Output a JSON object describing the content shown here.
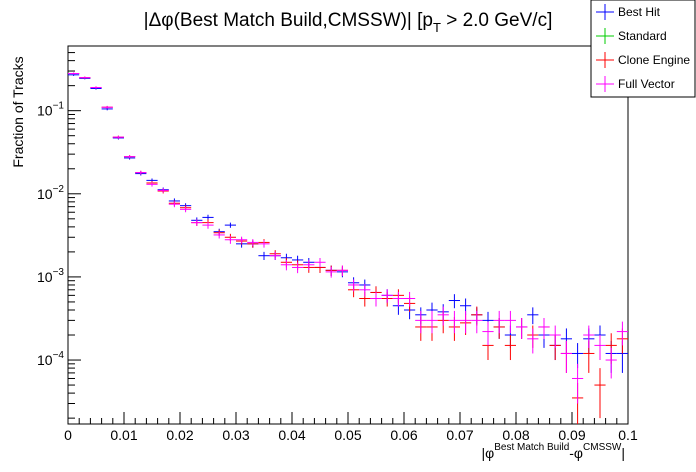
{
  "chart_data": {
    "type": "scatter",
    "title": {
      "prefix": "|Δφ(Best Match Build,CMSSW)| [p",
      "sub": "T",
      "suffix": " > 2.0 GeV/c]"
    },
    "ylabel": "Fraction of Tracks",
    "xlabel": {
      "open": "|φ",
      "sup1": "Best Match Build",
      "mid": "-φ",
      "sup2": "CMSSW",
      "close": "|"
    },
    "x_tick_labels": [
      "0",
      "0.01",
      "0.02",
      "0.03",
      "0.04",
      "0.05",
      "0.06",
      "0.07",
      "0.08",
      "0.09",
      "0.1"
    ],
    "y_tick_labels": [
      {
        "base": "10",
        "exp": "−4"
      },
      {
        "base": "10",
        "exp": "−3"
      },
      {
        "base": "10",
        "exp": "−2"
      },
      {
        "base": "10",
        "exp": "−1"
      }
    ],
    "xlim": [
      0,
      0.1
    ],
    "ylim": [
      1.7e-05,
      0.6
    ],
    "yscale": "log",
    "grid": false,
    "legend_position": "top-right",
    "bin_width": 0.002,
    "series": [
      {
        "name": "Best Hit",
        "color": "#0000ff",
        "points": [
          {
            "x": 0.001,
            "y": 0.27,
            "err": 0.008
          },
          {
            "x": 0.003,
            "y": 0.245,
            "err": 0.007
          },
          {
            "x": 0.005,
            "y": 0.185,
            "err": 0.006
          },
          {
            "x": 0.007,
            "y": 0.105,
            "err": 0.004
          },
          {
            "x": 0.009,
            "y": 0.047,
            "err": 0.002
          },
          {
            "x": 0.011,
            "y": 0.027,
            "err": 0.0012
          },
          {
            "x": 0.013,
            "y": 0.0175,
            "err": 0.0009
          },
          {
            "x": 0.015,
            "y": 0.0145,
            "err": 0.0008
          },
          {
            "x": 0.017,
            "y": 0.0112,
            "err": 0.0007
          },
          {
            "x": 0.019,
            "y": 0.0082,
            "err": 0.0006
          },
          {
            "x": 0.021,
            "y": 0.0072,
            "err": 0.0005
          },
          {
            "x": 0.023,
            "y": 0.0048,
            "err": 0.0004
          },
          {
            "x": 0.025,
            "y": 0.0052,
            "err": 0.0004
          },
          {
            "x": 0.027,
            "y": 0.0035,
            "err": 0.0003
          },
          {
            "x": 0.029,
            "y": 0.0042,
            "err": 0.0003
          },
          {
            "x": 0.031,
            "y": 0.0025,
            "err": 0.00025
          },
          {
            "x": 0.033,
            "y": 0.0025,
            "err": 0.00025
          },
          {
            "x": 0.035,
            "y": 0.0018,
            "err": 0.0002
          },
          {
            "x": 0.037,
            "y": 0.0018,
            "err": 0.0002
          },
          {
            "x": 0.039,
            "y": 0.0017,
            "err": 0.0002
          },
          {
            "x": 0.041,
            "y": 0.0016,
            "err": 0.0002
          },
          {
            "x": 0.043,
            "y": 0.0015,
            "err": 0.00019
          },
          {
            "x": 0.045,
            "y": 0.0013,
            "err": 0.00018
          },
          {
            "x": 0.047,
            "y": 0.0012,
            "err": 0.00017
          },
          {
            "x": 0.049,
            "y": 0.00115,
            "err": 0.00016
          },
          {
            "x": 0.051,
            "y": 0.00085,
            "err": 0.00014
          },
          {
            "x": 0.053,
            "y": 0.0008,
            "err": 0.00013
          },
          {
            "x": 0.055,
            "y": 0.00065,
            "err": 0.00012
          },
          {
            "x": 0.057,
            "y": 0.0006,
            "err": 0.00011
          },
          {
            "x": 0.059,
            "y": 0.00045,
            "err": 0.0001
          },
          {
            "x": 0.061,
            "y": 0.0004,
            "err": 9e-05
          },
          {
            "x": 0.063,
            "y": 0.00035,
            "err": 8e-05
          },
          {
            "x": 0.065,
            "y": 0.0004,
            "err": 9e-05
          },
          {
            "x": 0.067,
            "y": 0.00038,
            "err": 9e-05
          },
          {
            "x": 0.069,
            "y": 0.00052,
            "err": 0.0001
          },
          {
            "x": 0.071,
            "y": 0.00045,
            "err": 0.0001
          },
          {
            "x": 0.073,
            "y": 0.00035,
            "err": 8e-05
          },
          {
            "x": 0.075,
            "y": 0.0003,
            "err": 8e-05
          },
          {
            "x": 0.077,
            "y": 0.00025,
            "err": 7e-05
          },
          {
            "x": 0.079,
            "y": 0.0002,
            "err": 6e-05
          },
          {
            "x": 0.081,
            "y": 0.00025,
            "err": 7e-05
          },
          {
            "x": 0.083,
            "y": 0.00035,
            "err": 8e-05
          },
          {
            "x": 0.085,
            "y": 0.0002,
            "err": 6e-05
          },
          {
            "x": 0.087,
            "y": 0.00015,
            "err": 5e-05
          },
          {
            "x": 0.089,
            "y": 0.00018,
            "err": 6e-05
          },
          {
            "x": 0.091,
            "y": 0.00012,
            "err": 4e-05
          },
          {
            "x": 0.093,
            "y": 0.00018,
            "err": 6e-05
          },
          {
            "x": 0.095,
            "y": 0.0002,
            "err": 6e-05
          },
          {
            "x": 0.097,
            "y": 0.00012,
            "err": 5e-05
          },
          {
            "x": 0.099,
            "y": 0.00012,
            "err": 5e-05
          }
        ]
      },
      {
        "name": "Standard",
        "color": "#00cc00",
        "points": []
      },
      {
        "name": "Clone Engine",
        "color": "#ff0000",
        "points": [
          {
            "x": 0.001,
            "y": 0.28,
            "err": 0.008
          },
          {
            "x": 0.003,
            "y": 0.25,
            "err": 0.007
          },
          {
            "x": 0.005,
            "y": 0.19,
            "err": 0.006
          },
          {
            "x": 0.007,
            "y": 0.11,
            "err": 0.004
          },
          {
            "x": 0.009,
            "y": 0.048,
            "err": 0.002
          },
          {
            "x": 0.011,
            "y": 0.028,
            "err": 0.0012
          },
          {
            "x": 0.013,
            "y": 0.018,
            "err": 0.0009
          },
          {
            "x": 0.015,
            "y": 0.0135,
            "err": 0.0008
          },
          {
            "x": 0.017,
            "y": 0.0108,
            "err": 0.0007
          },
          {
            "x": 0.019,
            "y": 0.0077,
            "err": 0.0006
          },
          {
            "x": 0.021,
            "y": 0.0068,
            "err": 0.0005
          },
          {
            "x": 0.023,
            "y": 0.0045,
            "err": 0.0004
          },
          {
            "x": 0.025,
            "y": 0.0045,
            "err": 0.0004
          },
          {
            "x": 0.027,
            "y": 0.0034,
            "err": 0.0003
          },
          {
            "x": 0.029,
            "y": 0.003,
            "err": 0.0003
          },
          {
            "x": 0.031,
            "y": 0.0027,
            "err": 0.00025
          },
          {
            "x": 0.033,
            "y": 0.0025,
            "err": 0.00025
          },
          {
            "x": 0.035,
            "y": 0.0026,
            "err": 0.00025
          },
          {
            "x": 0.037,
            "y": 0.0019,
            "err": 0.0002
          },
          {
            "x": 0.039,
            "y": 0.0015,
            "err": 0.0002
          },
          {
            "x": 0.041,
            "y": 0.0014,
            "err": 0.00019
          },
          {
            "x": 0.043,
            "y": 0.0013,
            "err": 0.00018
          },
          {
            "x": 0.045,
            "y": 0.0013,
            "err": 0.00018
          },
          {
            "x": 0.047,
            "y": 0.0012,
            "err": 0.00017
          },
          {
            "x": 0.049,
            "y": 0.0012,
            "err": 0.00017
          },
          {
            "x": 0.051,
            "y": 0.0007,
            "err": 0.00013
          },
          {
            "x": 0.053,
            "y": 0.00055,
            "err": 0.00011
          },
          {
            "x": 0.055,
            "y": 0.00065,
            "err": 0.00012
          },
          {
            "x": 0.057,
            "y": 0.00055,
            "err": 0.00011
          },
          {
            "x": 0.059,
            "y": 0.0006,
            "err": 0.00011
          },
          {
            "x": 0.061,
            "y": 0.00048,
            "err": 0.0001
          },
          {
            "x": 0.063,
            "y": 0.00025,
            "err": 8e-05
          },
          {
            "x": 0.065,
            "y": 0.00025,
            "err": 8e-05
          },
          {
            "x": 0.067,
            "y": 0.0003,
            "err": 9e-05
          },
          {
            "x": 0.069,
            "y": 0.00025,
            "err": 8e-05
          },
          {
            "x": 0.071,
            "y": 0.00028,
            "err": 8e-05
          },
          {
            "x": 0.073,
            "y": 0.00035,
            "err": 9e-05
          },
          {
            "x": 0.075,
            "y": 0.00015,
            "err": 5e-05
          },
          {
            "x": 0.077,
            "y": 0.00025,
            "err": 7e-05
          },
          {
            "x": 0.079,
            "y": 0.00015,
            "err": 5e-05
          },
          {
            "x": 0.081,
            "y": 0.00025,
            "err": 7e-05
          },
          {
            "x": 0.083,
            "y": 0.0002,
            "err": 6e-05
          },
          {
            "x": 0.085,
            "y": 0.00025,
            "err": 7e-05
          },
          {
            "x": 0.087,
            "y": 0.00015,
            "err": 5e-05
          },
          {
            "x": 0.089,
            "y": 0.00012,
            "err": 5e-05
          },
          {
            "x": 0.091,
            "y": 3.5e-05,
            "err": 1.8e-05
          },
          {
            "x": 0.093,
            "y": 0.00012,
            "err": 5e-05
          },
          {
            "x": 0.095,
            "y": 5e-05,
            "err": 3e-05
          },
          {
            "x": 0.097,
            "y": 0.00015,
            "err": 6e-05
          },
          {
            "x": 0.099,
            "y": 0.00018,
            "err": 6e-05
          }
        ]
      },
      {
        "name": "Full Vector",
        "color": "#ff00ff",
        "points": [
          {
            "x": 0.001,
            "y": 0.28,
            "err": 0.008
          },
          {
            "x": 0.003,
            "y": 0.25,
            "err": 0.007
          },
          {
            "x": 0.005,
            "y": 0.19,
            "err": 0.006
          },
          {
            "x": 0.007,
            "y": 0.11,
            "err": 0.004
          },
          {
            "x": 0.009,
            "y": 0.048,
            "err": 0.002
          },
          {
            "x": 0.011,
            "y": 0.028,
            "err": 0.0012
          },
          {
            "x": 0.013,
            "y": 0.018,
            "err": 0.0009
          },
          {
            "x": 0.015,
            "y": 0.013,
            "err": 0.0008
          },
          {
            "x": 0.017,
            "y": 0.011,
            "err": 0.0007
          },
          {
            "x": 0.019,
            "y": 0.0075,
            "err": 0.0006
          },
          {
            "x": 0.021,
            "y": 0.0065,
            "err": 0.0005
          },
          {
            "x": 0.023,
            "y": 0.0045,
            "err": 0.0004
          },
          {
            "x": 0.025,
            "y": 0.0042,
            "err": 0.0004
          },
          {
            "x": 0.027,
            "y": 0.0032,
            "err": 0.0003
          },
          {
            "x": 0.029,
            "y": 0.0028,
            "err": 0.0003
          },
          {
            "x": 0.031,
            "y": 0.0028,
            "err": 0.00025
          },
          {
            "x": 0.033,
            "y": 0.0026,
            "err": 0.00025
          },
          {
            "x": 0.035,
            "y": 0.0025,
            "err": 0.00025
          },
          {
            "x": 0.037,
            "y": 0.0018,
            "err": 0.0002
          },
          {
            "x": 0.039,
            "y": 0.0014,
            "err": 0.0002
          },
          {
            "x": 0.041,
            "y": 0.0013,
            "err": 0.00019
          },
          {
            "x": 0.043,
            "y": 0.0014,
            "err": 0.00019
          },
          {
            "x": 0.045,
            "y": 0.0015,
            "err": 0.00019
          },
          {
            "x": 0.047,
            "y": 0.00115,
            "err": 0.00017
          },
          {
            "x": 0.049,
            "y": 0.0012,
            "err": 0.00017
          },
          {
            "x": 0.051,
            "y": 0.0008,
            "err": 0.00013
          },
          {
            "x": 0.053,
            "y": 0.0007,
            "err": 0.00012
          },
          {
            "x": 0.055,
            "y": 0.00055,
            "err": 0.00011
          },
          {
            "x": 0.057,
            "y": 0.0006,
            "err": 0.00011
          },
          {
            "x": 0.059,
            "y": 0.00055,
            "err": 0.00011
          },
          {
            "x": 0.061,
            "y": 0.00055,
            "err": 0.00011
          },
          {
            "x": 0.063,
            "y": 0.0003,
            "err": 9e-05
          },
          {
            "x": 0.065,
            "y": 0.0003,
            "err": 9e-05
          },
          {
            "x": 0.067,
            "y": 0.00035,
            "err": 9e-05
          },
          {
            "x": 0.069,
            "y": 0.0003,
            "err": 9e-05
          },
          {
            "x": 0.071,
            "y": 0.0003,
            "err": 9e-05
          },
          {
            "x": 0.073,
            "y": 0.0003,
            "err": 9e-05
          },
          {
            "x": 0.075,
            "y": 0.00022,
            "err": 7e-05
          },
          {
            "x": 0.077,
            "y": 0.0003,
            "err": 9e-05
          },
          {
            "x": 0.079,
            "y": 0.0003,
            "err": 9e-05
          },
          {
            "x": 0.081,
            "y": 0.00025,
            "err": 7e-05
          },
          {
            "x": 0.083,
            "y": 0.00018,
            "err": 6e-05
          },
          {
            "x": 0.085,
            "y": 0.00025,
            "err": 7e-05
          },
          {
            "x": 0.087,
            "y": 0.0002,
            "err": 6e-05
          },
          {
            "x": 0.089,
            "y": 0.00012,
            "err": 5e-05
          },
          {
            "x": 0.091,
            "y": 6e-05,
            "err": 3e-05
          },
          {
            "x": 0.093,
            "y": 0.0002,
            "err": 6e-05
          },
          {
            "x": 0.095,
            "y": 0.00015,
            "err": 5e-05
          },
          {
            "x": 0.097,
            "y": 0.0001,
            "err": 4e-05
          },
          {
            "x": 0.099,
            "y": 0.00022,
            "err": 7e-05
          }
        ]
      }
    ]
  }
}
